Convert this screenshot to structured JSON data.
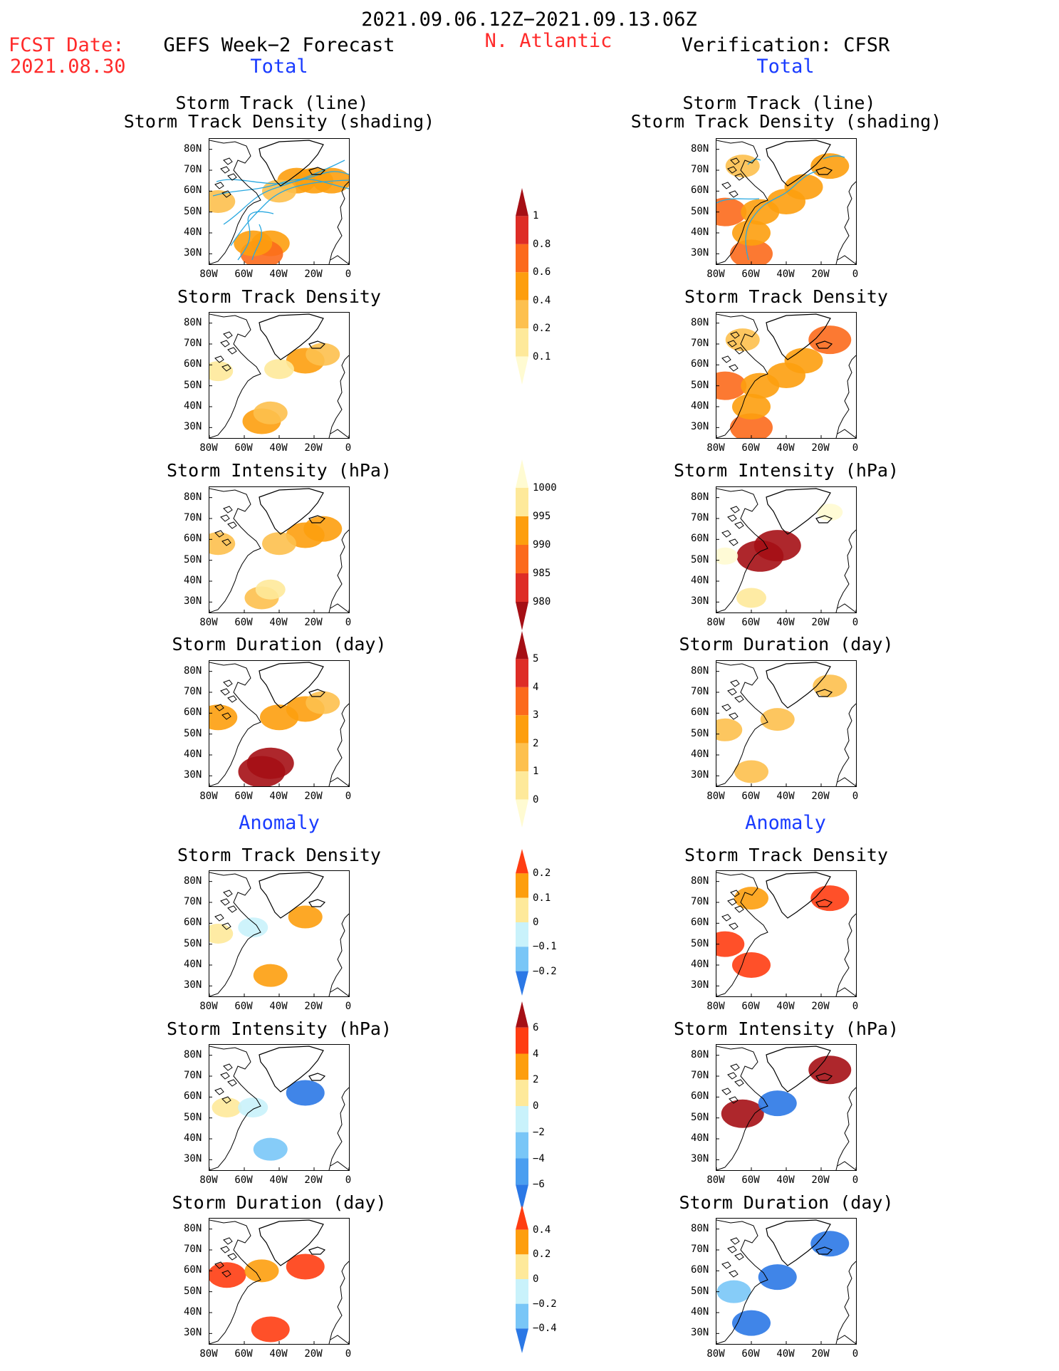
{
  "header": {
    "date_range": "2021.09.06.12Z−2021.09.13.06Z",
    "fcst_label": "FCST Date:",
    "fcst_date": "2021.08.30",
    "left_title": "GEFS Week−2 Forecast",
    "region": "N. Atlantic",
    "right_title": "Verification: CFSR",
    "total_left": "Total",
    "total_right": "Total",
    "anomaly_left": "Anomaly",
    "anomaly_right": "Anomaly"
  },
  "panel_titles": {
    "track_line": "Storm Track (line)",
    "track_density_shading": "Storm Track Density (shading)",
    "track_density": "Storm Track Density",
    "intensity": "Storm Intensity (hPa)",
    "duration": "Storm Duration (day)"
  },
  "axes": {
    "lat_labels": [
      "80N",
      "70N",
      "60N",
      "50N",
      "40N",
      "30N"
    ],
    "lon_labels": [
      "80W",
      "60W",
      "40W",
      "20W",
      "0"
    ]
  },
  "colorbars": [
    {
      "name": "density-total",
      "labels": [
        "1",
        "0.8",
        "0.6",
        "0.4",
        "0.2",
        "0.1"
      ],
      "colors": [
        "#a50f15",
        "#de2d26",
        "#fc6a1c",
        "#fd9e0e",
        "#fdc04e",
        "#fee99a",
        "#fffbd2"
      ]
    },
    {
      "name": "intensity-total",
      "labels": [
        "1000",
        "995",
        "990",
        "985",
        "980"
      ],
      "colors": [
        "#fffbd2",
        "#fee99a",
        "#fd9e0e",
        "#fc6a1c",
        "#de2d26",
        "#a50f15"
      ]
    },
    {
      "name": "duration-total",
      "labels": [
        "5",
        "4",
        "3",
        "2",
        "1",
        "0"
      ],
      "colors": [
        "#a50f15",
        "#de2d26",
        "#fc6a1c",
        "#fd9e0e",
        "#fdc04e",
        "#fee99a",
        "#fffbd2"
      ]
    },
    {
      "name": "density-anomaly",
      "labels": [
        "0.2",
        "0.1",
        "0",
        "−0.1",
        "−0.2"
      ],
      "colors": [
        "#ff3d12",
        "#fd9e0e",
        "#fee99a",
        "#c9f2fb",
        "#79c6f7",
        "#2b78e6"
      ]
    },
    {
      "name": "intensity-anomaly",
      "labels": [
        "6",
        "4",
        "2",
        "0",
        "−2",
        "−4",
        "−6"
      ],
      "colors": [
        "#a50f15",
        "#ff3d12",
        "#fd9e0e",
        "#fee99a",
        "#c9f2fb",
        "#79c6f7",
        "#4a9ef0",
        "#2b78e6"
      ]
    },
    {
      "name": "duration-anomaly",
      "labels": [
        "0.4",
        "0.2",
        "0",
        "−0.2",
        "−0.4"
      ],
      "colors": [
        "#ff3d12",
        "#fd9e0e",
        "#fee99a",
        "#c9f2fb",
        "#79c6f7",
        "#2b78e6"
      ]
    }
  ],
  "chart_data": {
    "type": "heatmap",
    "region": "N. Atlantic",
    "lat_range": [
      25,
      85
    ],
    "lon_range": [
      -80,
      0
    ],
    "panels": [
      {
        "column": "GEFS",
        "row": "total",
        "field": "Storm Track (line) / Storm Track Density (shading)",
        "cells": [
          [
            -45,
            35,
            3
          ],
          [
            -50,
            30,
            4
          ],
          [
            -55,
            35,
            3
          ],
          [
            -30,
            65,
            3
          ],
          [
            -20,
            65,
            3
          ],
          [
            -10,
            65,
            3
          ],
          [
            -40,
            60,
            2
          ],
          [
            -75,
            55,
            2
          ]
        ]
      },
      {
        "column": "CFSR",
        "row": "total",
        "field": "Storm Track (line) / Storm Track Density (shading)",
        "cells": [
          [
            -60,
            30,
            4
          ],
          [
            -60,
            40,
            3
          ],
          [
            -75,
            50,
            4
          ],
          [
            -55,
            50,
            3
          ],
          [
            -40,
            55,
            3
          ],
          [
            -30,
            62,
            3
          ],
          [
            -15,
            72,
            3
          ],
          [
            -65,
            72,
            2
          ]
        ]
      },
      {
        "column": "GEFS",
        "row": "total",
        "field": "Storm Track Density",
        "cells": [
          [
            -50,
            33,
            3
          ],
          [
            -45,
            37,
            2
          ],
          [
            -25,
            62,
            3
          ],
          [
            -15,
            65,
            2
          ],
          [
            -40,
            58,
            1
          ],
          [
            -75,
            57,
            1
          ]
        ]
      },
      {
        "column": "CFSR",
        "row": "total",
        "field": "Storm Track Density",
        "cells": [
          [
            -60,
            30,
            4
          ],
          [
            -60,
            40,
            3
          ],
          [
            -75,
            50,
            4
          ],
          [
            -55,
            50,
            3
          ],
          [
            -40,
            55,
            3
          ],
          [
            -30,
            62,
            3
          ],
          [
            -15,
            72,
            4
          ],
          [
            -65,
            72,
            2
          ]
        ]
      },
      {
        "column": "GEFS",
        "row": "total",
        "field": "Storm Intensity (hPa)",
        "cells": [
          [
            -50,
            32,
            2
          ],
          [
            -45,
            36,
            1
          ],
          [
            -25,
            62,
            3
          ],
          [
            -15,
            65,
            3
          ],
          [
            -40,
            58,
            2
          ],
          [
            -75,
            58,
            2
          ]
        ]
      },
      {
        "column": "CFSR",
        "row": "total",
        "field": "Storm Intensity (hPa)",
        "cells": [
          [
            -45,
            57,
            5
          ],
          [
            -55,
            52,
            5
          ],
          [
            -60,
            32,
            1
          ],
          [
            -75,
            52,
            0
          ],
          [
            -15,
            73,
            0
          ]
        ]
      },
      {
        "column": "GEFS",
        "row": "total",
        "field": "Storm Duration (day)",
        "cells": [
          [
            -50,
            32,
            5
          ],
          [
            -45,
            36,
            5
          ],
          [
            -25,
            62,
            3
          ],
          [
            -15,
            65,
            2
          ],
          [
            -40,
            58,
            3
          ],
          [
            -75,
            58,
            3
          ]
        ]
      },
      {
        "column": "CFSR",
        "row": "total",
        "field": "Storm Duration (day)",
        "cells": [
          [
            -60,
            32,
            2
          ],
          [
            -45,
            57,
            2
          ],
          [
            -75,
            52,
            2
          ],
          [
            -15,
            73,
            2
          ]
        ]
      },
      {
        "column": "GEFS",
        "row": "anomaly",
        "field": "Storm Track Density",
        "cells": [
          [
            -45,
            35,
            2
          ],
          [
            -25,
            63,
            2
          ],
          [
            -55,
            58,
            -1
          ],
          [
            -75,
            55,
            1
          ]
        ]
      },
      {
        "column": "CFSR",
        "row": "anomaly",
        "field": "Storm Track Density",
        "cells": [
          [
            -60,
            40,
            3
          ],
          [
            -75,
            50,
            3
          ],
          [
            -60,
            72,
            2
          ],
          [
            -15,
            72,
            3
          ]
        ]
      },
      {
        "column": "GEFS",
        "row": "anomaly",
        "field": "Storm Intensity (hPa)",
        "cells": [
          [
            -45,
            35,
            -2
          ],
          [
            -25,
            62,
            -3
          ],
          [
            -70,
            55,
            1
          ],
          [
            -55,
            55,
            -1
          ]
        ]
      },
      {
        "column": "CFSR",
        "row": "anomaly",
        "field": "Storm Intensity (hPa)",
        "cells": [
          [
            -65,
            52,
            4
          ],
          [
            -45,
            57,
            -3
          ],
          [
            -15,
            73,
            4
          ]
        ]
      },
      {
        "column": "GEFS",
        "row": "anomaly",
        "field": "Storm Duration (day)",
        "cells": [
          [
            -45,
            32,
            3
          ],
          [
            -25,
            62,
            3
          ],
          [
            -70,
            58,
            3
          ],
          [
            -50,
            60,
            2
          ]
        ]
      },
      {
        "column": "CFSR",
        "row": "anomaly",
        "field": "Storm Duration (day)",
        "cells": [
          [
            -60,
            35,
            -3
          ],
          [
            -45,
            57,
            -3
          ],
          [
            -70,
            50,
            -2
          ],
          [
            -15,
            73,
            -3
          ]
        ]
      }
    ]
  }
}
